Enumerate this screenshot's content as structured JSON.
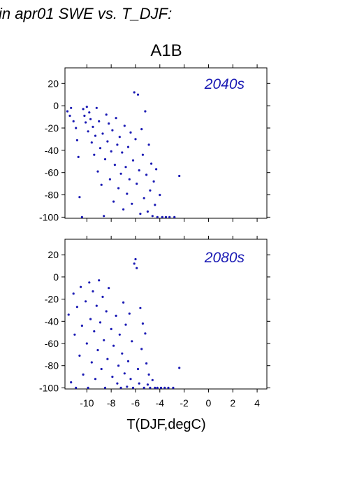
{
  "header": {
    "text": "in apr01 SWE vs. T_DJF:"
  },
  "chart_data": {
    "type": "scatter",
    "title": "A1B",
    "xlabel": "T(DJF,degC)",
    "ylabel": "",
    "xlim": [
      -11.8,
      4.8
    ],
    "ylim": [
      -101,
      34
    ],
    "x_ticks": [
      -10,
      -8,
      -6,
      -4,
      -2,
      0,
      2,
      4
    ],
    "x_tick_labels": [
      "-10",
      "-8",
      "-6",
      "-4",
      "-2",
      "0",
      "2",
      "4"
    ],
    "y_ticks": [
      20,
      0,
      -20,
      -40,
      -60,
      -80,
      -100
    ],
    "y_tick_labels": [
      "20",
      "0",
      "-20",
      "-40",
      "-60",
      "-80",
      "-100"
    ],
    "marker_color": "#1a1ab4",
    "panels": [
      {
        "label": "2040s",
        "points": [
          [
            -11.6,
            -5
          ],
          [
            -11.4,
            -9
          ],
          [
            -11.3,
            -2
          ],
          [
            -11.1,
            -14
          ],
          [
            -10.9,
            -20
          ],
          [
            -10.8,
            -31
          ],
          [
            -10.7,
            -46
          ],
          [
            -10.6,
            -82
          ],
          [
            -10.4,
            -100
          ],
          [
            -10.3,
            -3
          ],
          [
            -10.2,
            -9
          ],
          [
            -10.1,
            -15
          ],
          [
            -10.0,
            -1
          ],
          [
            -9.9,
            -23
          ],
          [
            -9.8,
            -6
          ],
          [
            -9.7,
            -12
          ],
          [
            -9.6,
            -33
          ],
          [
            -9.5,
            -19
          ],
          [
            -9.4,
            -44
          ],
          [
            -9.3,
            -27
          ],
          [
            -9.2,
            -2
          ],
          [
            -9.1,
            -59
          ],
          [
            -9.0,
            -14
          ],
          [
            -8.9,
            -38
          ],
          [
            -8.8,
            -71
          ],
          [
            -8.7,
            -25
          ],
          [
            -8.6,
            -99
          ],
          [
            -8.5,
            -48
          ],
          [
            -8.4,
            -8
          ],
          [
            -8.3,
            -32
          ],
          [
            -8.2,
            -16
          ],
          [
            -8.1,
            -66
          ],
          [
            -8.0,
            -41
          ],
          [
            -7.9,
            -22
          ],
          [
            -7.8,
            -86
          ],
          [
            -7.7,
            -53
          ],
          [
            -7.6,
            -11
          ],
          [
            -7.5,
            -35
          ],
          [
            -7.4,
            -74
          ],
          [
            -7.3,
            -28
          ],
          [
            -7.2,
            -61
          ],
          [
            -7.1,
            -42
          ],
          [
            -7.0,
            -93
          ],
          [
            -6.9,
            -18
          ],
          [
            -6.8,
            -55
          ],
          [
            -6.7,
            -79
          ],
          [
            -6.6,
            -37
          ],
          [
            -6.5,
            -66
          ],
          [
            -6.4,
            -24
          ],
          [
            -6.3,
            -88
          ],
          [
            -6.2,
            -49
          ],
          [
            -6.1,
            12
          ],
          [
            -6.0,
            -30
          ],
          [
            -5.9,
            -70
          ],
          [
            -5.8,
            10
          ],
          [
            -5.7,
            -58
          ],
          [
            -5.6,
            -97
          ],
          [
            -5.5,
            -21
          ],
          [
            -5.4,
            -44
          ],
          [
            -5.3,
            -83
          ],
          [
            -5.2,
            -5
          ],
          [
            -5.1,
            -62
          ],
          [
            -5.0,
            -95
          ],
          [
            -4.9,
            -35
          ],
          [
            -4.8,
            -76
          ],
          [
            -4.7,
            -52
          ],
          [
            -4.6,
            -99
          ],
          [
            -4.5,
            -68
          ],
          [
            -4.4,
            -89
          ],
          [
            -4.3,
            -57
          ],
          [
            -4.2,
            -100
          ],
          [
            -4.0,
            -80
          ],
          [
            -3.8,
            -100
          ],
          [
            -3.5,
            -100
          ],
          [
            -3.2,
            -100
          ],
          [
            -2.8,
            -100
          ],
          [
            -2.4,
            -63
          ]
        ]
      },
      {
        "label": "2080s",
        "points": [
          [
            -11.5,
            -34
          ],
          [
            -11.3,
            -95
          ],
          [
            -11.1,
            -15
          ],
          [
            -11.0,
            -52
          ],
          [
            -10.9,
            -100
          ],
          [
            -10.8,
            -27
          ],
          [
            -10.6,
            -71
          ],
          [
            -10.5,
            -9
          ],
          [
            -10.4,
            -44
          ],
          [
            -10.3,
            -88
          ],
          [
            -10.1,
            -22
          ],
          [
            -10.0,
            -60
          ],
          [
            -9.9,
            -100
          ],
          [
            -9.8,
            -5
          ],
          [
            -9.7,
            -38
          ],
          [
            -9.6,
            -77
          ],
          [
            -9.5,
            -13
          ],
          [
            -9.4,
            -49
          ],
          [
            -9.3,
            -92
          ],
          [
            -9.2,
            -26
          ],
          [
            -9.1,
            -66
          ],
          [
            -9.0,
            -3
          ],
          [
            -8.9,
            -41
          ],
          [
            -8.8,
            -83
          ],
          [
            -8.7,
            -18
          ],
          [
            -8.6,
            -57
          ],
          [
            -8.5,
            -100
          ],
          [
            -8.4,
            -31
          ],
          [
            -8.3,
            -74
          ],
          [
            -8.2,
            -10
          ],
          [
            -8.0,
            -47
          ],
          [
            -7.9,
            -90
          ],
          [
            -7.8,
            -62
          ],
          [
            -7.6,
            -35
          ],
          [
            -7.5,
            -96
          ],
          [
            -7.4,
            -80
          ],
          [
            -7.3,
            -52
          ],
          [
            -7.2,
            -100
          ],
          [
            -7.1,
            -69
          ],
          [
            -7.0,
            -23
          ],
          [
            -6.9,
            -87
          ],
          [
            -6.8,
            -43
          ],
          [
            -6.7,
            -99
          ],
          [
            -6.6,
            -76
          ],
          [
            -6.5,
            -33
          ],
          [
            -6.4,
            -92
          ],
          [
            -6.3,
            -58
          ],
          [
            -6.2,
            -100
          ],
          [
            -6.1,
            12
          ],
          [
            -6.0,
            16
          ],
          [
            -5.9,
            8
          ],
          [
            -5.8,
            -83
          ],
          [
            -5.7,
            -96
          ],
          [
            -5.6,
            -28
          ],
          [
            -5.5,
            -65
          ],
          [
            -5.4,
            -42
          ],
          [
            -5.3,
            -100
          ],
          [
            -5.2,
            -51
          ],
          [
            -5.1,
            -78
          ],
          [
            -5.0,
            -97
          ],
          [
            -4.9,
            -88
          ],
          [
            -4.8,
            -100
          ],
          [
            -4.6,
            -93
          ],
          [
            -4.4,
            -100
          ],
          [
            -4.2,
            -100
          ],
          [
            -3.9,
            -100
          ],
          [
            -3.6,
            -100
          ],
          [
            -3.3,
            -100
          ],
          [
            -2.9,
            -100
          ],
          [
            -2.4,
            -82
          ]
        ]
      }
    ]
  }
}
